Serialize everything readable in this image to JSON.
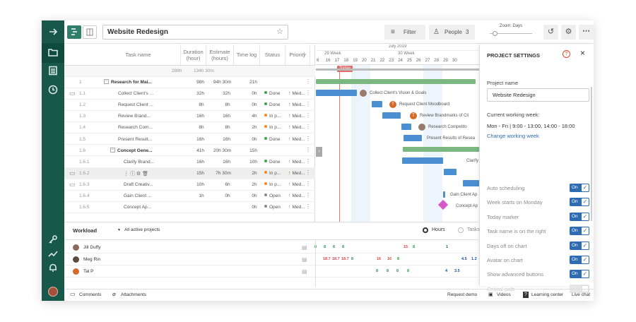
{
  "header": {
    "project_title": "Website Redesign",
    "filter_label": "Filter",
    "people_label": "People",
    "people_count": "3",
    "zoom_label": "Zoom: Days"
  },
  "grid": {
    "columns": [
      "Task name",
      "Duration (hour)",
      "Estimate (hours)",
      "Time log",
      "Status",
      "Priority"
    ],
    "totals": {
      "duration": "288h",
      "estimate": "134h 30m"
    },
    "rows": [
      {
        "num": "1",
        "name": "Research for Mai...",
        "duration": "98h",
        "estimate": "94h 30m",
        "timelog": "21h",
        "status": "",
        "priority": ""
      },
      {
        "num": "1.1",
        "name": "Collect Client's ...",
        "duration": "32h",
        "estimate": "32h",
        "timelog": "0h",
        "status": "Done",
        "priority": "Med..."
      },
      {
        "num": "1.2",
        "name": "Request Client ...",
        "duration": "8h",
        "estimate": "8h",
        "timelog": "0h",
        "status": "Done",
        "priority": "Med..."
      },
      {
        "num": "1.3",
        "name": "Review Brand...",
        "duration": "16h",
        "estimate": "16h",
        "timelog": "4h",
        "status": "In p...",
        "priority": "Med..."
      },
      {
        "num": "1.4",
        "name": "Research Com...",
        "duration": "8h",
        "estimate": "8h",
        "timelog": "2h",
        "status": "In p...",
        "priority": "Med..."
      },
      {
        "num": "1.5",
        "name": "Present Result...",
        "duration": "16h",
        "estimate": "16h",
        "timelog": "0h",
        "status": "Done",
        "priority": "Med..."
      },
      {
        "num": "1.6",
        "name": "Concept Gene...",
        "duration": "41h",
        "estimate": "20h 30m",
        "timelog": "15h",
        "status": "",
        "priority": ""
      },
      {
        "num": "1.6.1",
        "name": "Clarify Brand...",
        "duration": "16h",
        "estimate": "16h",
        "timelog": "10h",
        "status": "Done",
        "priority": "Med..."
      },
      {
        "num": "1.6.2",
        "name": "",
        "duration": "15h",
        "estimate": "7h 30m",
        "timelog": "2h",
        "status": "In p...",
        "priority": "Med..."
      },
      {
        "num": "1.6.3",
        "name": "Draft Creativ...",
        "duration": "10h",
        "estimate": "6h",
        "timelog": "2h",
        "status": "In p...",
        "priority": "Med..."
      },
      {
        "num": "1.6.4",
        "name": "Gain Client ...",
        "duration": "1h",
        "estimate": "0h",
        "timelog": "0h",
        "status": "Open",
        "priority": "Med..."
      },
      {
        "num": "1.6.5",
        "name": "Concept Ap...",
        "duration": "",
        "estimate": "",
        "timelog": "0h",
        "status": "Open",
        "priority": "Med..."
      }
    ]
  },
  "gantt": {
    "month": "July 2019",
    "weeks": [
      "29 Week",
      "30 Week"
    ],
    "days": [
      "16",
      "17",
      "18",
      "19",
      "20",
      "21",
      "22",
      "23",
      "24",
      "25",
      "26",
      "27",
      "28",
      "29",
      "30"
    ],
    "first_day": "6",
    "today_label": "Today",
    "labels": [
      "Collect Client's Vision & Goals",
      "Request Client Moodboard",
      "Review Brandmarks of Cli",
      "Research Competito",
      "Present Results of Resea",
      "Clarify",
      "Gain Client Ap",
      "Concept Ap"
    ],
    "avatar_letter": "T"
  },
  "settings": {
    "title": "PROJECT SETTINGS",
    "project_name_label": "Project name",
    "project_name_value": "Website Redesign",
    "working_week_label": "Current working week:",
    "working_week_value": "Mon - Fri | 9:00 - 13:00,  14:00 - 18:00",
    "change_link": "Change working week",
    "toggles": [
      {
        "label": "Auto scheduling",
        "state": "On"
      },
      {
        "label": "Week starts on Monday",
        "state": "On"
      },
      {
        "label": "Today marker",
        "state": "On"
      },
      {
        "label": "Task name is on the right",
        "state": "On"
      },
      {
        "label": "Days off on chart",
        "state": "On"
      },
      {
        "label": "Avatar on chart",
        "state": "On"
      },
      {
        "label": "Show advanced buttons",
        "state": "On"
      },
      {
        "label": "Critical path",
        "state": ""
      }
    ]
  },
  "workload": {
    "title": "Workload",
    "filter": "All active projects",
    "hours_label": "Hours",
    "tasks_label": "Tasks",
    "people": [
      {
        "name": "Jill Duffy",
        "values": [
          "8",
          "8",
          "8",
          "8",
          "15",
          "8",
          "1"
        ]
      },
      {
        "name": "Meg Rin",
        "values": [
          "18.7",
          "18.7",
          "18.7",
          "8",
          "16",
          "16",
          "8",
          "4.5",
          "1.2"
        ]
      },
      {
        "name": "Tal P",
        "values": [
          "8",
          "8",
          "8",
          "8",
          "4",
          "3.5"
        ]
      }
    ]
  },
  "footer": {
    "comments": "Comments",
    "attachments": "Attachments",
    "request_demo": "Request demo",
    "videos": "Videos",
    "learning_center": "Learning center",
    "live_chat": "Live chat"
  }
}
